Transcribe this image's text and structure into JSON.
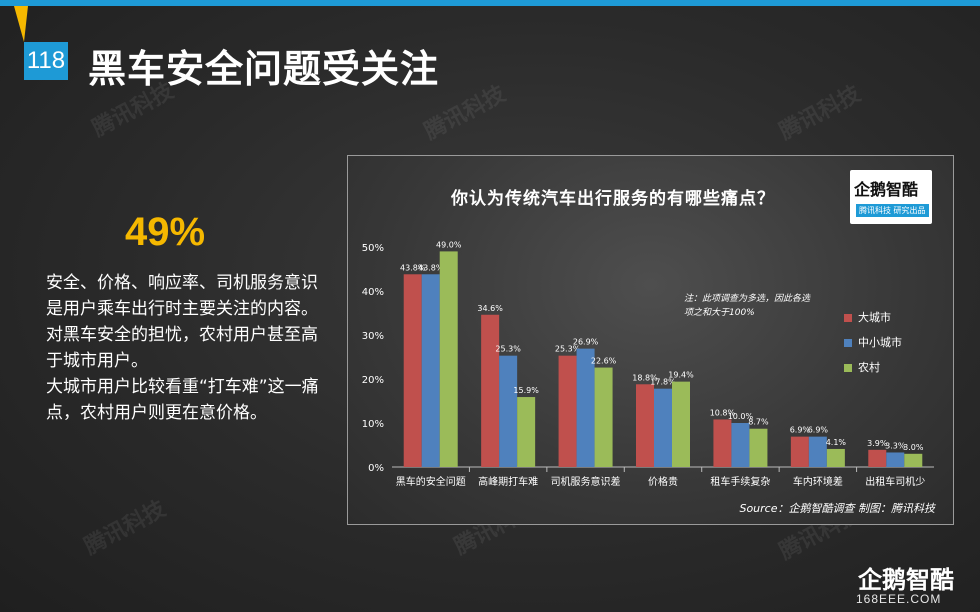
{
  "header": {
    "page_number": "118",
    "title": "黑车安全问题受关注"
  },
  "watermark_text": "腾讯科技",
  "summary": {
    "highlight": "49%",
    "paragraphs": [
      "安全、价格、响应率、司机服务意识是用户乘车出行时主要关注的内容。对黑车安全的担忧，农村用户甚至高于城市用户。",
      "大城市用户比较看重“打车难”这一痛点，农村用户则更在意价格。"
    ]
  },
  "brand": {
    "logo_text": "企鹅智酷",
    "logo_sub": "腾讯科技 研究出品",
    "corner_logo": "企鹅智酷",
    "corner_site": "168EEE.COM"
  },
  "colors": {
    "accent_blue": "#1e9ad6",
    "highlight_yellow": "#f5b800",
    "series_big_city": "#c0504d",
    "series_small_city": "#4f81bd",
    "series_rural": "#9bbb59"
  },
  "chart_data": {
    "type": "bar",
    "title": "你认为传统汽车出行服务的有哪些痛点？",
    "categories": [
      "黑车的安全问题",
      "高峰期打车难",
      "司机服务意识差",
      "价格贵",
      "租车手续复杂",
      "车内环境差",
      "出租车司机少"
    ],
    "series": [
      {
        "name": "大城市",
        "color": "#c0504d",
        "values": [
          43.8,
          34.6,
          25.3,
          18.8,
          10.8,
          6.9,
          3.9
        ]
      },
      {
        "name": "中小城市",
        "color": "#4f81bd",
        "values": [
          43.8,
          25.3,
          26.9,
          17.8,
          10.0,
          6.9,
          3.3
        ]
      },
      {
        "name": "农村",
        "color": "#9bbb59",
        "values": [
          49.0,
          15.9,
          22.6,
          19.4,
          8.7,
          4.1,
          3.0
        ]
      }
    ],
    "ylim": [
      0,
      50
    ],
    "yticks": [
      "0%",
      "10%",
      "20%",
      "30%",
      "40%",
      "50%"
    ],
    "legend_position": "right",
    "note": "注：此项调查为多选，因此各选项之和大于100%",
    "source": "Source：企鹅智酷调查  制图：腾讯科技"
  }
}
